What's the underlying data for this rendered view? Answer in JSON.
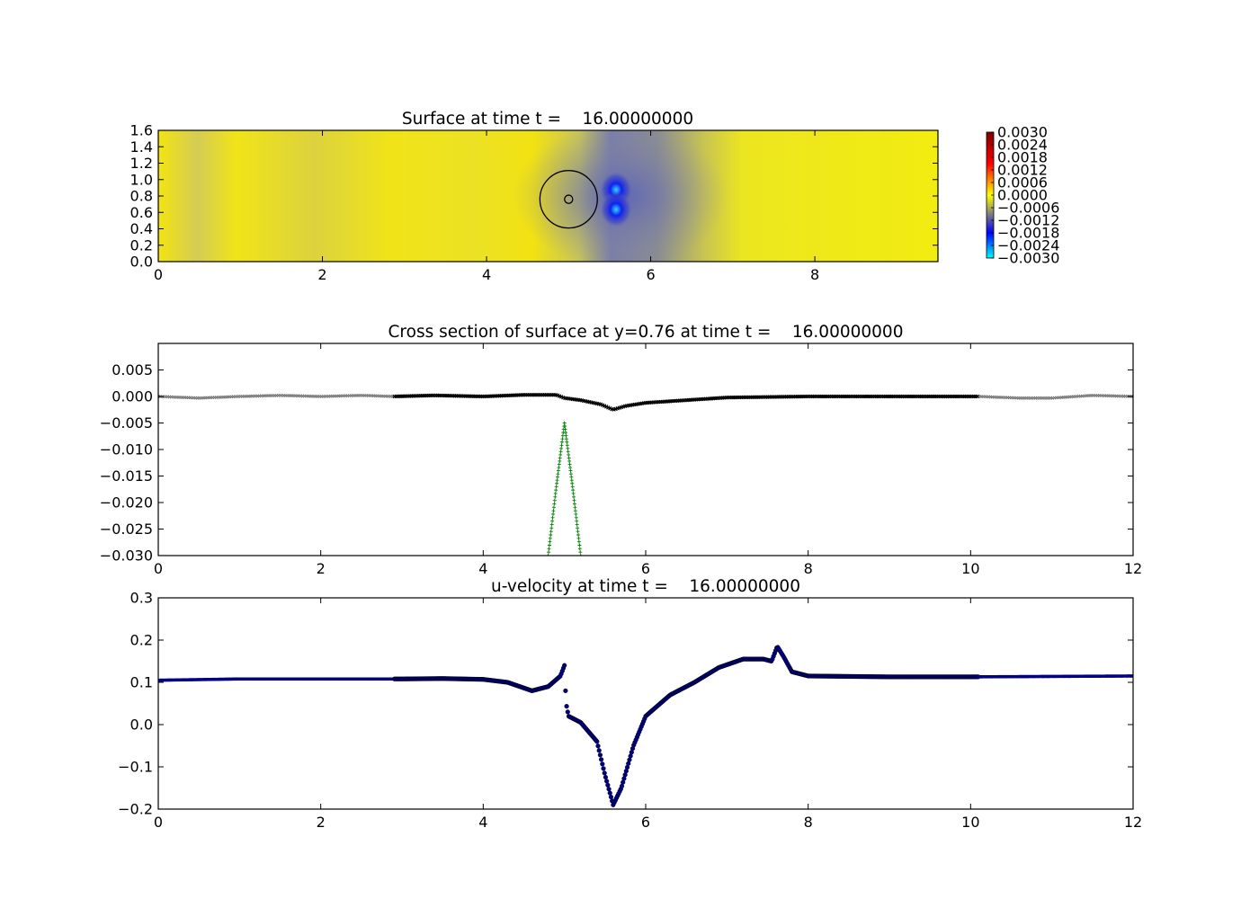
{
  "chart_data": [
    {
      "type": "heatmap",
      "title": "Surface at time t =    16.00000000",
      "xlim": [
        0,
        9.5
      ],
      "ylim": [
        0,
        1.6
      ],
      "x_ticks": [
        "0",
        "2",
        "4",
        "6",
        "8"
      ],
      "y_ticks": [
        "0.0",
        "0.2",
        "0.4",
        "0.6",
        "0.8",
        "1.0",
        "1.2",
        "1.4",
        "1.6"
      ],
      "colorbar": {
        "range": [
          -0.003,
          0.003
        ],
        "ticks": [
          "0.0030",
          "0.0024",
          "0.0018",
          "0.0012",
          "0.0006",
          "0.0000",
          "−0.0006",
          "−0.0012",
          "−0.0018",
          "−0.0024",
          "−0.0030"
        ],
        "colors": [
          "#00ffff",
          "#0000ff",
          "#808080",
          "#ffff00",
          "#ff0000",
          "#800000"
        ]
      },
      "features": {
        "circle_center": [
          5.0,
          0.76
        ],
        "circle_radius": 0.35,
        "inner_circle_radius": 0.05,
        "trough_center_x": 5.6,
        "trough_lobes_y": [
          0.86,
          0.62
        ],
        "trough_min": -0.003
      }
    },
    {
      "type": "scatter",
      "title": "Cross section of surface at y=0.76 at time t =    16.00000000",
      "xlim": [
        0,
        12
      ],
      "ylim": [
        -0.03,
        0.01
      ],
      "x_ticks": [
        "0",
        "2",
        "4",
        "6",
        "8",
        "10",
        "12"
      ],
      "y_ticks": [
        "0.005",
        "0.000",
        "−0.005",
        "−0.010",
        "−0.015",
        "−0.020",
        "−0.025",
        "−0.030"
      ],
      "series": [
        {
          "marker": "x",
          "color": "#000000",
          "x": [
            0,
            0.5,
            1.0,
            1.5,
            2.0,
            2.5,
            2.9,
            3.4,
            4.0,
            4.5,
            4.9,
            5.0,
            5.2,
            5.45,
            5.6,
            5.75,
            6.0,
            6.5,
            7.0,
            8.0,
            9.0,
            10.1,
            10.6,
            11.0,
            11.5,
            12.0
          ],
          "y": [
            0.0,
            -0.0003,
            0.0,
            0.0002,
            0.0,
            0.0002,
            0.0,
            0.0002,
            0.0,
            0.0003,
            0.0003,
            -0.0003,
            -0.0007,
            -0.0015,
            -0.0025,
            -0.0018,
            -0.0012,
            -0.0007,
            -0.0002,
            0.0,
            0.0,
            0.0,
            -0.0003,
            -0.0003,
            0.0002,
            0.0
          ]
        },
        {
          "marker": "+",
          "color": "#008000",
          "x": [
            4.8,
            4.9,
            5.0,
            5.1,
            5.2
          ],
          "y": [
            -0.03,
            -0.017,
            -0.005,
            -0.017,
            -0.03
          ]
        }
      ]
    },
    {
      "type": "scatter",
      "title": "u-velocity at time t =    16.00000000",
      "xlim": [
        0,
        12
      ],
      "ylim": [
        -0.2,
        0.3
      ],
      "x_ticks": [
        "0",
        "2",
        "4",
        "6",
        "8",
        "10",
        "12"
      ],
      "y_ticks": [
        "0.3",
        "0.2",
        "0.1",
        "0.0",
        "−0.1",
        "−0.2"
      ],
      "series": [
        {
          "marker": "o",
          "color": "#000080",
          "x": [
            0,
            1,
            2,
            3,
            3.5,
            4.0,
            4.3,
            4.6,
            4.8,
            4.95,
            5.0,
            5.02,
            5.05,
            5.2,
            5.4,
            5.5,
            5.6,
            5.7,
            5.85,
            6.0,
            6.3,
            6.6,
            6.9,
            7.2,
            7.45,
            7.55,
            7.62,
            7.7,
            7.8,
            8.0,
            9.0,
            10.0,
            11.0,
            12.0
          ],
          "y": [
            0.105,
            0.108,
            0.108,
            0.108,
            0.109,
            0.107,
            0.1,
            0.08,
            0.09,
            0.115,
            0.14,
            0.05,
            0.02,
            0.005,
            -0.04,
            -0.12,
            -0.19,
            -0.15,
            -0.05,
            0.02,
            0.07,
            0.1,
            0.135,
            0.155,
            0.155,
            0.15,
            0.185,
            0.16,
            0.125,
            0.115,
            0.113,
            0.113,
            0.114,
            0.115
          ]
        }
      ]
    }
  ]
}
